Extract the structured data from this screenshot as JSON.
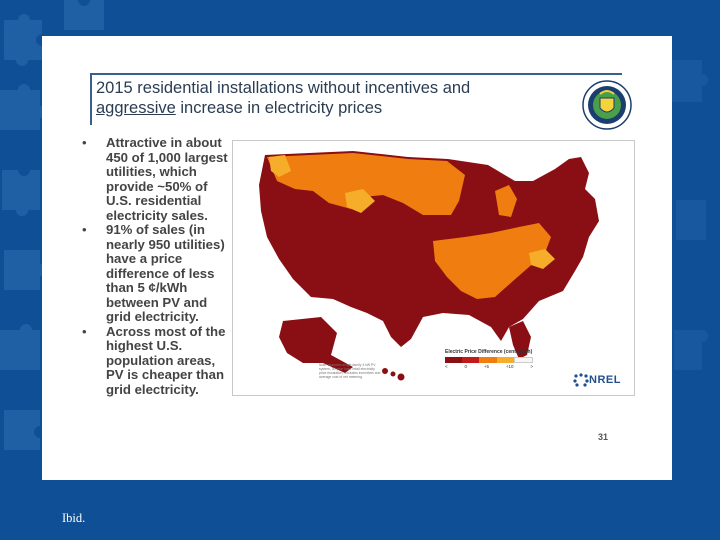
{
  "slide": {
    "title_line1": "2015 residential installations without incentives and",
    "title_line2_underlined": "aggressive",
    "title_line2_rest": " increase in electricity prices",
    "bullets": [
      "Attractive in about 450 of 1,000 largest utilities, which provide ~50% of U.S. residential electricity sales.",
      "91% of sales (in nearly 950 utilities) have a price difference of less than 5 ¢/kWh between PV and grid electricity.",
      "Across most of the highest U.S. population areas, PV is cheaper than grid electricity."
    ],
    "page_number": "31",
    "seal_icon": "doe-seal-icon"
  },
  "map": {
    "legend_title": "Electric Price Difference (cents/kWh)",
    "legend_ticks": [
      "<",
      "0",
      "+5",
      "+10",
      ">"
    ],
    "legend_colors": [
      "#8a0f14",
      "#c21a1a",
      "#f07d10",
      "#f6ae2a",
      "#f7f7ef"
    ],
    "footnote": "Note: assumes single-family 4 kW PV system, 30-year loan; retail electricity price escalation, excludes incentives and average cost of net metering.",
    "logo_text": "NREL"
  },
  "caption": "Ibid.",
  "colors": {
    "background": "#0f4f96",
    "slide_bg": "#ffffff",
    "dark_red": "#8a0f14",
    "orange": "#f07d10",
    "light_orange": "#f6ae2a"
  }
}
